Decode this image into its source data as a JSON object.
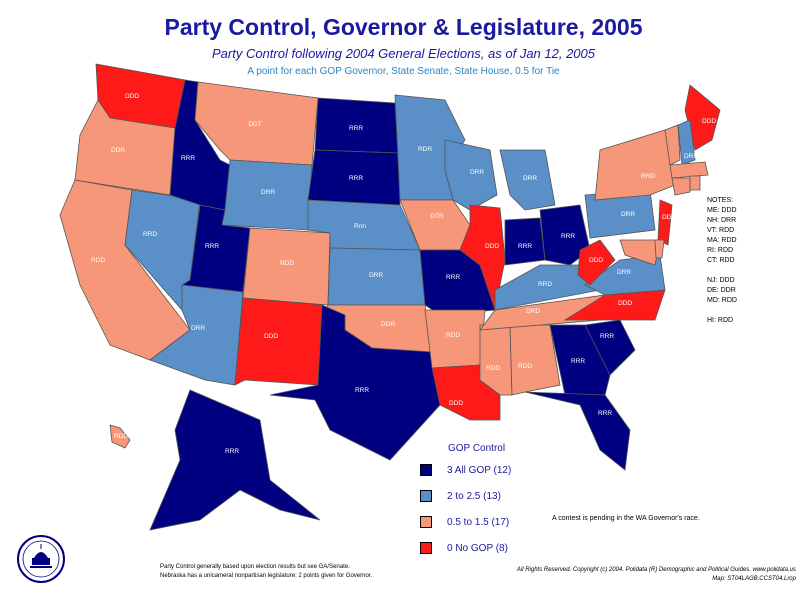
{
  "title": "Party Control, Governor & Legislature, 2005",
  "subtitle": "Party Control following 2004 General Elections, as of Jan 12, 2005",
  "subtitle2": "A point for each GOP Governor, State Senate, State House, 0.5 for Tie",
  "colors": {
    "all_gop": "#000080",
    "mostly_gop": "#5b8fc7",
    "mostly_dem": "#f7977a",
    "no_gop": "#ff1a1a"
  },
  "states": {
    "WA": "DDD",
    "OR": "DDR",
    "CA": "RDD",
    "NV": "RRD",
    "ID": "RRR",
    "MT": "DDT",
    "WY": "DRR",
    "UT": "RRR",
    "AZ": "DRR",
    "CO": "RDD",
    "NM": "DDD",
    "ND": "RRR",
    "SD": "RRR",
    "NE": "Rnn",
    "KS": "DRR",
    "OK": "DDR",
    "TX": "RRR",
    "MN": "RDR",
    "IA": "DTR",
    "MO": "RRR",
    "AR": "RDD",
    "LA": "DDD",
    "WI": "DRR",
    "IL": "DDD",
    "MS": "RDD",
    "AL": "RDD",
    "TN": "DRD",
    "KY": "RRD",
    "IN": "RRR",
    "OH": "RRR",
    "MI": "DRR",
    "GA": "RRR",
    "FL": "RRR",
    "SC": "RRR",
    "NC": "DDD",
    "VA": "DRR",
    "WV": "DDD",
    "PA": "DRR",
    "NY": "RRD",
    "NJ": "DDD",
    "ME": "DDD",
    "VT": "RDD",
    "NH": "DRR",
    "MA": "RDD",
    "AK": "RRR",
    "HI": "RDD"
  },
  "notes": {
    "header": "NOTES:",
    "lines": [
      "ME: DDD",
      "NH: DRR",
      "VT: RDD",
      "MA: RDD",
      "RI: RDD",
      "CT: RDD",
      "",
      "NJ: DDD",
      "DE: DDR",
      "MD: RDD",
      "",
      "HI: RDD"
    ]
  },
  "legend": {
    "title": "GOP Control",
    "items": [
      {
        "label": "3 All GOP (12)"
      },
      {
        "label": "2  to 2.5 (13)"
      },
      {
        "label": "0.5 to 1.5 (17)"
      },
      {
        "label": "0 No GOP (8)"
      }
    ]
  },
  "contest_note": "A contest is pending in the WA Governor's race.",
  "footer_left": [
    "Party Control generally based upon election results but see GA/Senate.",
    "Nebraska has a unicameral nonpartisan legislature; 2 points given for Governor."
  ],
  "footer_right": [
    "All Rights Reserved. Copyright (c) 2004. Polidata (R) Demographic and Political Guides. www.polidata.us",
    "Map: ST04LAGB.CCST04.Lrop"
  ],
  "logo_text": "POLIDATA"
}
